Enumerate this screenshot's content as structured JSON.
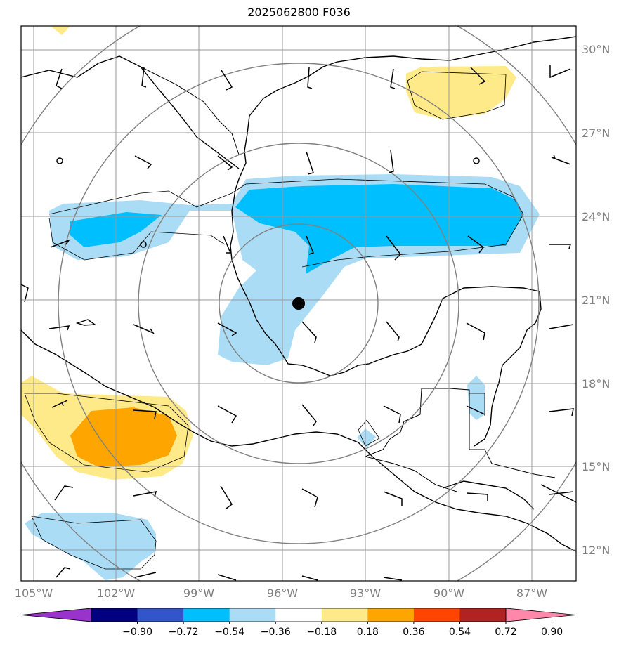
{
  "title": "2025062800 F036",
  "lat_labels": [
    "30°N",
    "27°N",
    "24°N",
    "21°N",
    "18°N",
    "15°N",
    "12°N"
  ],
  "lon_labels": [
    "105°W",
    "102°W",
    "99°W",
    "96°W",
    "93°W",
    "90°W",
    "87°W"
  ],
  "colorbar": {
    "ticks": [
      "−0.90",
      "−0.72",
      "−0.54",
      "−0.36",
      "−0.18",
      "0.18",
      "0.36",
      "0.54",
      "0.72",
      "0.90"
    ],
    "colors": [
      "#9933cc",
      "#000080",
      "#3355cc",
      "#00bfff",
      "#aadcf5",
      "#ffffff",
      "#ffea8a",
      "#ffa500",
      "#ff4500",
      "#b22222",
      "#ff88aa"
    ]
  },
  "storm_center": {
    "lat": 20.9,
    "lon": 95.5
  }
}
